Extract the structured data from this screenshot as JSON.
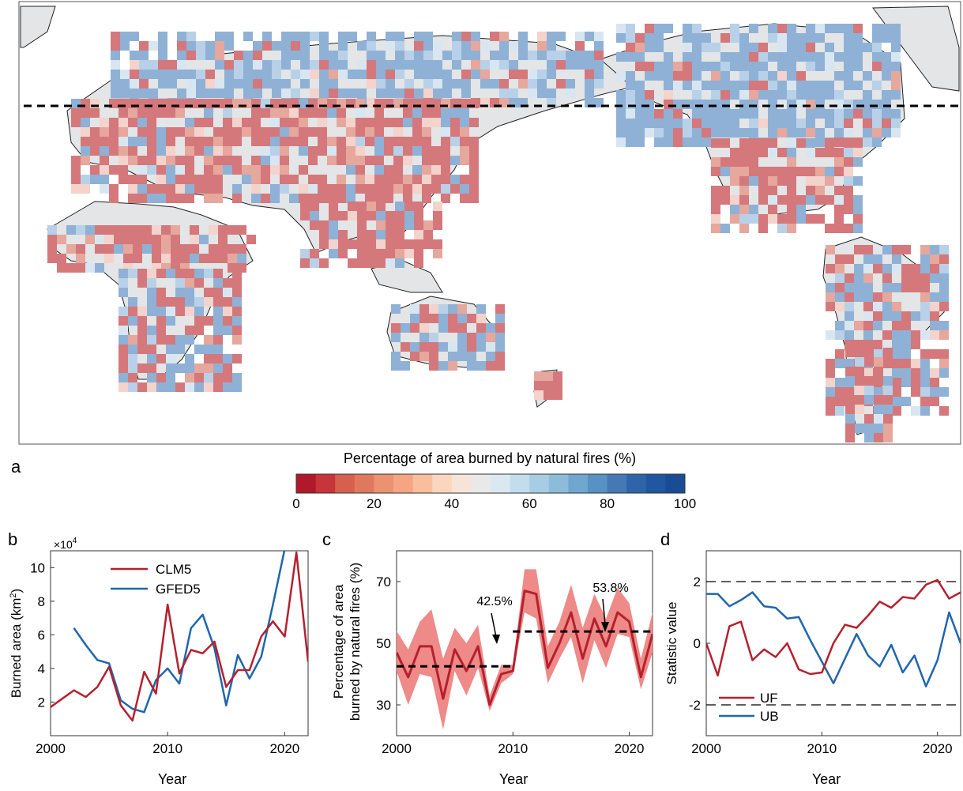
{
  "colors": {
    "red": "#B5202E",
    "blue": "#2166AC",
    "band": "#EE8A88",
    "land": "#E3E5E6",
    "map_red": "#D4787C",
    "map_blue": "#8FB1D6"
  },
  "panel_a": {
    "letter": "a",
    "colorbar_title": "Percentage of area burned by natural fires (%)",
    "colorbar_ticks": [
      "0",
      "20",
      "40",
      "60",
      "80",
      "100"
    ],
    "colorbar_colors": [
      "#B2182B",
      "#C73439",
      "#D6604D",
      "#E0785E",
      "#EB9270",
      "#F4A582",
      "#F8BE9E",
      "#FBD6BF",
      "#F7E4D9",
      "#E9E9EA",
      "#DCE8F1",
      "#C2DDEC",
      "#A6CDE3",
      "#8DBCDA",
      "#6FA7CF",
      "#5891C3",
      "#4479B5",
      "#2F65A8",
      "#2156A0",
      "#1A4C95"
    ]
  },
  "panel_b": {
    "letter": "b",
    "ylabel": "Burned area (km",
    "ylabel_sup": "2",
    "ylabel_end": ")",
    "xlabel": "Year",
    "multiplier": "×10",
    "multiplier_exp": "4",
    "xticks": [
      "2000",
      "2010",
      "2020"
    ],
    "yticks": [
      "2",
      "4",
      "6",
      "8",
      "10"
    ],
    "legend": [
      "CLM5",
      "GFED5"
    ]
  },
  "panel_c": {
    "letter": "c",
    "ylabel_line1": "Percentage of area",
    "ylabel_line2": "burned by natural fires (%)",
    "xlabel": "Year",
    "xticks": [
      "2000",
      "2010",
      "2020"
    ],
    "yticks": [
      "30",
      "50",
      "70"
    ],
    "annotation_1": "42.5%",
    "annotation_2": "53.8%"
  },
  "panel_d": {
    "letter": "d",
    "ylabel": "Statistic value",
    "xlabel": "Year",
    "xticks": [
      "2000",
      "2010",
      "2020"
    ],
    "yticks": [
      "-2",
      "0",
      "2"
    ],
    "legend": [
      "UF",
      "UB"
    ]
  },
  "chart_data": [
    {
      "type": "line",
      "panel": "b",
      "xlabel": "Year",
      "ylabel": "Burned area (km2)",
      "y_scale": "×10^4",
      "xlim": [
        2000,
        2022
      ],
      "ylim": [
        0,
        11
      ],
      "series": [
        {
          "name": "CLM5",
          "x": [
            2000,
            2001,
            2002,
            2003,
            2004,
            2005,
            2006,
            2007,
            2008,
            2009,
            2010,
            2011,
            2012,
            2013,
            2014,
            2015,
            2016,
            2017,
            2018,
            2019,
            2020,
            2021,
            2022
          ],
          "y": [
            1.7,
            2.2,
            2.7,
            2.3,
            2.9,
            4.1,
            1.8,
            0.9,
            3.8,
            2.5,
            7.8,
            3.7,
            5.1,
            4.9,
            5.6,
            2.9,
            3.9,
            3.9,
            5.9,
            6.8,
            5.9,
            10.9,
            4.4
          ]
        },
        {
          "name": "GFED5",
          "x": [
            2002,
            2003,
            2004,
            2005,
            2006,
            2007,
            2008,
            2009,
            2010,
            2011,
            2012,
            2013,
            2014,
            2015,
            2016,
            2017,
            2018,
            2019,
            2020
          ],
          "y": [
            6.4,
            5.4,
            4.5,
            4.3,
            2.1,
            1.6,
            1.4,
            3.3,
            4.0,
            3.1,
            6.4,
            7.2,
            5.2,
            1.8,
            4.8,
            3.4,
            4.7,
            7.8,
            11.1
          ]
        }
      ]
    },
    {
      "type": "line",
      "panel": "c",
      "xlabel": "Year",
      "ylabel": "Percentage of area burned by natural fires (%)",
      "xlim": [
        2000,
        2022
      ],
      "ylim": [
        20,
        80
      ],
      "series": [
        {
          "name": "",
          "x": [
            2000,
            2001,
            2002,
            2003,
            2004,
            2005,
            2006,
            2007,
            2008,
            2009,
            2010,
            2011,
            2012,
            2013,
            2014,
            2015,
            2016,
            2017,
            2018,
            2019,
            2020,
            2021,
            2022
          ],
          "y": [
            47,
            39,
            49,
            49,
            32,
            48,
            41,
            49,
            30,
            40,
            41,
            67,
            66,
            42,
            50,
            60,
            45,
            58,
            49,
            60,
            57,
            39,
            53
          ],
          "lower": [
            41,
            30,
            40,
            39,
            22,
            41,
            33,
            42,
            28,
            37,
            40,
            60,
            58,
            37,
            45,
            52,
            37,
            51,
            42,
            53,
            52,
            35,
            47
          ],
          "upper": [
            54,
            48,
            57,
            61,
            45,
            55,
            50,
            56,
            33,
            43,
            43,
            74,
            74,
            49,
            57,
            69,
            55,
            66,
            58,
            68,
            63,
            45,
            60
          ]
        }
      ],
      "mean_lines": [
        {
          "x": [
            2000,
            2010
          ],
          "y": 42.5
        },
        {
          "x": [
            2010,
            2022
          ],
          "y": 53.8
        }
      ]
    },
    {
      "type": "line",
      "panel": "d",
      "xlabel": "Year",
      "ylabel": "Statistic value",
      "xlim": [
        2000,
        2022
      ],
      "ylim": [
        -3,
        3
      ],
      "reference_lines": [
        2,
        -2
      ],
      "series": [
        {
          "name": "UF",
          "x": [
            2000,
            2001,
            2002,
            2003,
            2004,
            2005,
            2006,
            2007,
            2008,
            2009,
            2010,
            2011,
            2012,
            2013,
            2014,
            2015,
            2016,
            2017,
            2018,
            2019,
            2020,
            2021,
            2022
          ],
          "y": [
            0,
            -1.05,
            0.55,
            0.7,
            -0.55,
            -0.2,
            -0.45,
            0.0,
            -0.85,
            -1.0,
            -0.95,
            0.0,
            0.6,
            0.5,
            0.9,
            1.35,
            1.15,
            1.5,
            1.45,
            1.9,
            2.05,
            1.45,
            1.65
          ]
        },
        {
          "name": "UB",
          "x": [
            2000,
            2001,
            2002,
            2003,
            2004,
            2005,
            2006,
            2007,
            2008,
            2009,
            2010,
            2011,
            2012,
            2013,
            2014,
            2015,
            2016,
            2017,
            2018,
            2019,
            2020,
            2021,
            2022
          ],
          "y": [
            1.6,
            1.6,
            1.2,
            1.4,
            1.65,
            1.2,
            1.15,
            0.8,
            0.85,
            0.1,
            -0.6,
            -1.3,
            -0.5,
            0.3,
            -0.4,
            -0.75,
            -0.05,
            -0.95,
            -0.4,
            -1.4,
            -0.55,
            1.0,
            0.0
          ]
        }
      ]
    }
  ]
}
